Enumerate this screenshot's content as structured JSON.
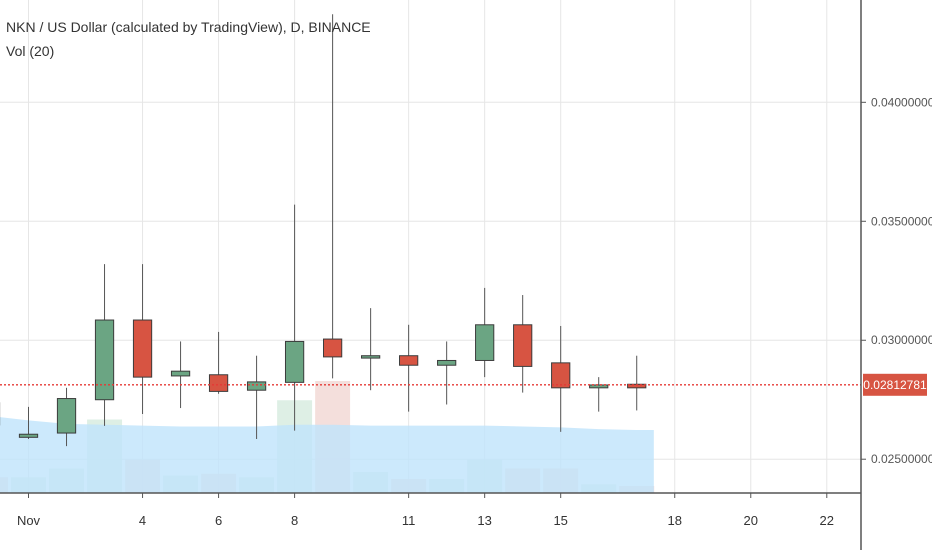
{
  "chart_data": {
    "type": "candlestick",
    "title": "NKN / US Dollar (calculated by TradingView), D, BINANCE",
    "indicator_label": "Vol (20)",
    "colors": {
      "up": "#6ba583",
      "down": "#d75442",
      "wick": "#555555",
      "volume_up": "#d8ece0",
      "volume_down": "#f2d9d6",
      "volume_ma": "#bfe3fb",
      "price_line": "#e53935",
      "price_tag_bg": "#d75442",
      "grid": "#e6e6e6"
    },
    "y_axis": {
      "range": [
        0.02358,
        0.0443
      ],
      "ticks": [
        "0.04000000",
        "0.03500000",
        "0.03000000",
        "0.02500000"
      ],
      "tick_values": [
        0.04,
        0.035,
        0.03,
        0.025
      ]
    },
    "x_axis": {
      "ticks": [
        "Nov",
        "4",
        "6",
        "8",
        "11",
        "13",
        "15",
        "18",
        "20",
        "22"
      ],
      "tick_days": [
        1,
        4,
        6,
        8,
        11,
        13,
        15,
        18,
        20,
        22
      ],
      "day_range": [
        0.25,
        22.9
      ]
    },
    "last_price": "0.02812781",
    "last_price_value": 0.02812781,
    "candles": [
      {
        "day": 0,
        "open": 0.02737,
        "high": 0.02762,
        "low": 0.02585,
        "close": 0.02644
      },
      {
        "day": 1,
        "open": 0.02592,
        "high": 0.0272,
        "low": 0.02585,
        "close": 0.02605
      },
      {
        "day": 2,
        "open": 0.0261,
        "high": 0.028,
        "low": 0.02555,
        "close": 0.02755
      },
      {
        "day": 3,
        "open": 0.0275,
        "high": 0.0332,
        "low": 0.0264,
        "close": 0.03085
      },
      {
        "day": 4,
        "open": 0.03085,
        "high": 0.0332,
        "low": 0.0269,
        "close": 0.02845
      },
      {
        "day": 5,
        "open": 0.0285,
        "high": 0.02995,
        "low": 0.02715,
        "close": 0.0287
      },
      {
        "day": 6,
        "open": 0.02855,
        "high": 0.03035,
        "low": 0.02775,
        "close": 0.02785
      },
      {
        "day": 7,
        "open": 0.0279,
        "high": 0.02935,
        "low": 0.02585,
        "close": 0.02825
      },
      {
        "day": 8,
        "open": 0.02823,
        "high": 0.0357,
        "low": 0.0262,
        "close": 0.02995
      },
      {
        "day": 9,
        "open": 0.03005,
        "high": 0.0437,
        "low": 0.0284,
        "close": 0.0293
      },
      {
        "day": 10,
        "open": 0.02925,
        "high": 0.03135,
        "low": 0.0279,
        "close": 0.02935
      },
      {
        "day": 11,
        "open": 0.02935,
        "high": 0.03065,
        "low": 0.027,
        "close": 0.02895
      },
      {
        "day": 12,
        "open": 0.02895,
        "high": 0.02995,
        "low": 0.0273,
        "close": 0.02915
      },
      {
        "day": 13,
        "open": 0.02915,
        "high": 0.0322,
        "low": 0.02845,
        "close": 0.03065
      },
      {
        "day": 14,
        "open": 0.03065,
        "high": 0.0319,
        "low": 0.0278,
        "close": 0.0289
      },
      {
        "day": 15,
        "open": 0.02905,
        "high": 0.0306,
        "low": 0.02615,
        "close": 0.028
      },
      {
        "day": 16,
        "open": 0.028,
        "high": 0.02845,
        "low": 0.027,
        "close": 0.02812
      },
      {
        "day": 17,
        "open": 0.02815,
        "high": 0.02935,
        "low": 0.02705,
        "close": 0.028
      }
    ],
    "volume": {
      "values": [
        0.9,
        0.9,
        1.4,
        4.2,
        1.9,
        1.0,
        1.1,
        0.9,
        5.3,
        6.4,
        1.2,
        0.8,
        0.8,
        1.9,
        1.4,
        1.4,
        0.5,
        0.4
      ],
      "ma": [
        4.4,
        4.15,
        3.95,
        3.9,
        3.85,
        3.8,
        3.8,
        3.8,
        3.9,
        3.9,
        3.85,
        3.85,
        3.85,
        3.85,
        3.8,
        3.75,
        3.65,
        3.6
      ]
    }
  }
}
